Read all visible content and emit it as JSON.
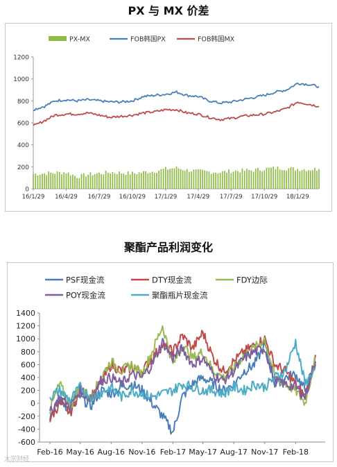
{
  "charts": {
    "top_title": "PX 与 MX 价差",
    "bottom_title": "聚酯产品利润变化"
  },
  "watermark": "大宗财经",
  "chart_data": [
    {
      "type": "bar+line",
      "title": "PX 与 MX 价差",
      "legend_position": "top",
      "ylim": [
        0,
        1200
      ],
      "yticks": [
        0,
        200,
        400,
        600,
        800,
        1000,
        1200
      ],
      "x_start": "2016-01-29",
      "x_end": "2018-03-29",
      "xtick_labels": [
        "16/1/29",
        "16/4/29",
        "16/7/29",
        "16/10/29",
        "17/1/29",
        "17/4/29",
        "17/7/29",
        "17/10/29",
        "18/1/29"
      ],
      "grid": false,
      "series": [
        {
          "name": "PX-MX",
          "type": "bar",
          "color": "#8dbb44",
          "x": [
            "2016-01-29",
            "2016-02-29",
            "2016-03-29",
            "2016-04-29",
            "2016-05-29",
            "2016-06-29",
            "2016-07-29",
            "2016-08-29",
            "2016-09-29",
            "2016-10-29",
            "2016-11-29",
            "2016-12-29",
            "2017-01-29",
            "2017-02-28",
            "2017-03-29",
            "2017-04-29",
            "2017-05-29",
            "2017-06-29",
            "2017-07-29",
            "2017-08-29",
            "2017-09-29",
            "2017-10-29",
            "2017-11-29",
            "2017-12-29",
            "2018-01-29",
            "2018-02-28",
            "2018-03-29"
          ],
          "values": [
            135,
            140,
            145,
            150,
            110,
            130,
            140,
            150,
            145,
            140,
            150,
            160,
            180,
            190,
            170,
            160,
            155,
            150,
            160,
            165,
            170,
            180,
            190,
            185,
            180,
            175,
            180
          ]
        },
        {
          "name": "FOB韩国PX",
          "type": "line",
          "color": "#4a7ebb",
          "x": [
            "2016-01-29",
            "2016-02-29",
            "2016-03-29",
            "2016-04-29",
            "2016-05-29",
            "2016-06-29",
            "2016-07-29",
            "2016-08-29",
            "2016-09-29",
            "2016-10-29",
            "2016-11-29",
            "2016-12-29",
            "2017-01-29",
            "2017-02-28",
            "2017-03-29",
            "2017-04-29",
            "2017-05-29",
            "2017-06-29",
            "2017-07-29",
            "2017-08-29",
            "2017-09-29",
            "2017-10-29",
            "2017-11-29",
            "2017-12-29",
            "2018-01-29",
            "2018-02-28",
            "2018-03-29"
          ],
          "values": [
            720,
            750,
            800,
            810,
            800,
            810,
            800,
            790,
            790,
            800,
            840,
            850,
            860,
            880,
            850,
            840,
            800,
            780,
            790,
            810,
            830,
            850,
            880,
            900,
            960,
            950,
            930
          ]
        },
        {
          "name": "FOB韩国MX",
          "type": "line",
          "color": "#be4b48",
          "x": [
            "2016-01-29",
            "2016-02-29",
            "2016-03-29",
            "2016-04-29",
            "2016-05-29",
            "2016-06-29",
            "2016-07-29",
            "2016-08-29",
            "2016-09-29",
            "2016-10-29",
            "2016-11-29",
            "2016-12-29",
            "2017-01-29",
            "2017-02-28",
            "2017-03-29",
            "2017-04-29",
            "2017-05-29",
            "2017-06-29",
            "2017-07-29",
            "2017-08-29",
            "2017-09-29",
            "2017-10-29",
            "2017-11-29",
            "2017-12-29",
            "2018-01-29",
            "2018-02-28",
            "2018-03-29"
          ],
          "values": [
            570,
            620,
            670,
            680,
            680,
            690,
            670,
            650,
            660,
            670,
            690,
            700,
            720,
            720,
            690,
            680,
            650,
            630,
            640,
            660,
            670,
            680,
            700,
            730,
            790,
            770,
            750
          ]
        }
      ]
    },
    {
      "type": "line",
      "title": "聚酯产品利润变化",
      "legend_position": "top",
      "ylim": [
        -600,
        1400
      ],
      "yticks": [
        -600,
        -400,
        -200,
        0,
        200,
        400,
        600,
        800,
        1000,
        1200,
        1400
      ],
      "x_start": "2016-01-01",
      "x_end": "2018-04-30",
      "xtick_labels": [
        "Feb-16",
        "May-16",
        "Aug-16",
        "Nov-16",
        "Feb-17",
        "May-17",
        "Aug-17",
        "Nov-17",
        "Feb-18"
      ],
      "grid": false,
      "x": [
        "2016-02-01",
        "2016-03-01",
        "2016-04-01",
        "2016-05-01",
        "2016-06-01",
        "2016-07-01",
        "2016-08-01",
        "2016-09-01",
        "2016-10-01",
        "2016-11-01",
        "2016-12-01",
        "2017-01-01",
        "2017-02-01",
        "2017-03-01",
        "2017-04-01",
        "2017-05-01",
        "2017-06-01",
        "2017-07-01",
        "2017-08-01",
        "2017-09-01",
        "2017-10-01",
        "2017-11-01",
        "2017-12-01",
        "2018-01-01",
        "2018-02-01",
        "2018-03-01",
        "2018-04-01"
      ],
      "series": [
        {
          "name": "PSF现金流",
          "color": "#4a7ebb",
          "values": [
            -200,
            50,
            -100,
            100,
            -50,
            200,
            150,
            250,
            300,
            200,
            0,
            -200,
            -450,
            100,
            300,
            400,
            300,
            200,
            300,
            500,
            600,
            900,
            300,
            400,
            450,
            200,
            600
          ]
        },
        {
          "name": "DTY现金流",
          "color": "#be4b48",
          "values": [
            -250,
            0,
            -150,
            200,
            100,
            300,
            600,
            500,
            550,
            500,
            700,
            900,
            800,
            1050,
            850,
            1100,
            700,
            500,
            650,
            800,
            900,
            1000,
            600,
            500,
            300,
            100,
            750
          ]
        },
        {
          "name": "FDY边际",
          "color": "#98b954",
          "values": [
            -100,
            300,
            -50,
            250,
            50,
            400,
            650,
            500,
            600,
            450,
            800,
            1200,
            600,
            900,
            700,
            800,
            500,
            400,
            550,
            750,
            850,
            1000,
            400,
            300,
            200,
            0,
            700
          ]
        },
        {
          "name": "POY现金流",
          "color": "#7d5fa0",
          "values": [
            -150,
            100,
            -50,
            200,
            50,
            350,
            400,
            300,
            450,
            400,
            600,
            950,
            700,
            850,
            600,
            700,
            450,
            350,
            500,
            700,
            800,
            850,
            350,
            300,
            250,
            100,
            650
          ]
        },
        {
          "name": "聚酯瓶片现金流",
          "color": "#4bacc6",
          "values": [
            100,
            200,
            50,
            250,
            100,
            150,
            250,
            100,
            200,
            150,
            100,
            150,
            200,
            300,
            250,
            200,
            200,
            150,
            250,
            200,
            300,
            250,
            400,
            500,
            950,
            300,
            550
          ]
        }
      ]
    }
  ]
}
